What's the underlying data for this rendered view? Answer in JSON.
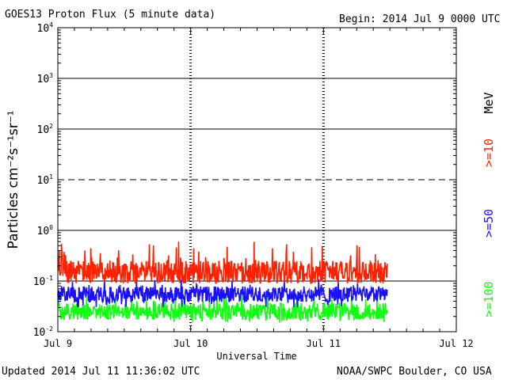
{
  "header": {
    "title": "GOES13 Proton Flux (5 minute data)",
    "begin": "Begin: 2014 Jul 9 0000 UTC"
  },
  "footer": {
    "updated": "Updated 2014 Jul 11 11:36:02 UTC",
    "credit": "NOAA/SWPC Boulder, CO USA"
  },
  "colors": {
    "series_ge10": "#ff2000",
    "series_ge50": "#1a10ff",
    "series_ge100": "#10ff10",
    "axes": "#000000"
  },
  "chart_data": {
    "type": "line",
    "title": "GOES13 Proton Flux (5 minute data)",
    "xlabel": "Universal Time",
    "ylabel": "Particles cm⁻²s⁻¹sr⁻¹",
    "y_scale": "log",
    "ylim": [
      0.01,
      10000
    ],
    "x_unit": "days since 2014 Jul 9 00:00 UTC",
    "xlim": [
      0,
      3
    ],
    "x_ticks": [
      {
        "value": 0,
        "label": "Jul 9"
      },
      {
        "value": 1,
        "label": "Jul 10"
      },
      {
        "value": 2,
        "label": "Jul 11"
      },
      {
        "value": 3,
        "label": "Jul 12"
      }
    ],
    "y_ticks": [
      {
        "value": 0.01,
        "base": "10",
        "exp": "-2"
      },
      {
        "value": 0.1,
        "base": "10",
        "exp": "-1"
      },
      {
        "value": 1,
        "base": "10",
        "exp": "0"
      },
      {
        "value": 10,
        "base": "10",
        "exp": "1"
      },
      {
        "value": 100,
        "base": "10",
        "exp": "2"
      },
      {
        "value": 1000,
        "base": "10",
        "exp": "3"
      },
      {
        "value": 10000,
        "base": "10",
        "exp": "4"
      }
    ],
    "grid": {
      "solid": [
        0.1,
        1,
        100,
        1000
      ],
      "dashed": [
        10
      ]
    },
    "data_end_x": 2.48,
    "series": [
      {
        "name": ">=10 MeV",
        "label": ">=10",
        "unit": "MeV",
        "color": "#ff2000",
        "typical": 0.15,
        "min": 0.09,
        "max": 0.6
      },
      {
        "name": ">=50 MeV",
        "label": ">=50",
        "color": "#1a10ff",
        "typical": 0.055,
        "min": 0.03,
        "max": 0.11
      },
      {
        "name": ">=100 MeV",
        "label": ">=100",
        "color": "#10ff10",
        "typical": 0.025,
        "min": 0.015,
        "max": 0.06
      }
    ]
  }
}
